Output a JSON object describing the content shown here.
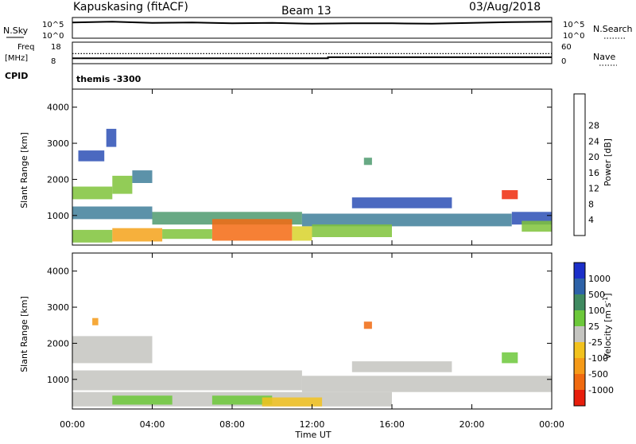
{
  "header": {
    "station": "Kapuskasing (fitACF)",
    "beam": "Beam 13",
    "date": "03/Aug/2018"
  },
  "strip_labels": {
    "nsky": "N.Sky",
    "nsky_ticks": [
      "10^5",
      "10^0"
    ],
    "freq_line1": "Freq",
    "freq_line2": "[MHz]",
    "freq_ticks": [
      "18",
      "8"
    ],
    "cpid": "CPID",
    "nsearch": "N.Search",
    "nsearch_ticks": [
      "10^5",
      "10^0"
    ],
    "nave": "Nave",
    "nave_ticks": [
      "60",
      "0"
    ],
    "cpid_value": "themis -3300"
  },
  "axes": {
    "xlabel": "Time UT",
    "x_ticks": [
      "00:00",
      "04:00",
      "08:00",
      "12:00",
      "16:00",
      "20:00",
      "00:00"
    ],
    "ylabel": "Slant Range [km]",
    "y_ticks": [
      "1000",
      "2000",
      "3000",
      "4000"
    ]
  },
  "colorbars": {
    "power": {
      "label": "Power [dB]",
      "ticks": [
        "4",
        "8",
        "12",
        "16",
        "20",
        "24",
        "28"
      ],
      "colors": [
        "#0a1cff",
        "#2c4fb5",
        "#3f7f9a",
        "#4e9a6e",
        "#7fc33a",
        "#d8d22a",
        "#f5a21a",
        "#f46a12",
        "#ee2a0c"
      ]
    },
    "velocity": {
      "label": "Velocity [m s",
      "label_sup": "-1",
      "label_end": "]",
      "ticks": [
        "1000",
        "500",
        "100",
        "25",
        "-25",
        "-100",
        "-500",
        "-1000"
      ],
      "colors": [
        "#1b2fc9",
        "#2d62a8",
        "#3f8a60",
        "#6cc83a",
        "#c4c4c0",
        "#f2c21e",
        "#f59a18",
        "#f06a10",
        "#e81e0c"
      ]
    }
  },
  "chart_data": [
    {
      "type": "line",
      "title": "N.Sky / N.Search",
      "x_range_hours": [
        0,
        24
      ],
      "ylim_log10": [
        0,
        5
      ],
      "series": [
        {
          "name": "N.Sky",
          "x": [
            0,
            2,
            4,
            6,
            8,
            10,
            12,
            14,
            16,
            18,
            20,
            22,
            24
          ],
          "y": [
            3.8,
            4.0,
            3.7,
            3.8,
            3.6,
            3.7,
            3.5,
            3.6,
            3.6,
            3.5,
            3.7,
            3.9,
            4.0
          ]
        }
      ]
    },
    {
      "type": "line",
      "title": "Freq / Nave",
      "x_range_hours": [
        0,
        24
      ],
      "series": [
        {
          "name": "Freq",
          "x": [
            0,
            12.8,
            12.8,
            24
          ],
          "y": [
            10.5,
            10.5,
            11.0,
            11.0
          ]
        },
        {
          "name": "Nave",
          "x": [
            0,
            24
          ],
          "y": [
            28,
            28
          ]
        }
      ]
    },
    {
      "type": "heatmap",
      "title": "Power",
      "xlabel": "Time UT",
      "ylabel": "Slant Range [km]",
      "x_range_hours": [
        0,
        24
      ],
      "ylim": [
        180,
        4500
      ],
      "zlabel": "Power [dB]",
      "patches": [
        {
          "t0": 0.0,
          "t1": 2.0,
          "r0": 1450,
          "r1": 1800,
          "level": 4
        },
        {
          "t0": 2.0,
          "t1": 3.0,
          "r0": 1600,
          "r1": 2100,
          "level": 4
        },
        {
          "t0": 3.0,
          "t1": 4.0,
          "r0": 1900,
          "r1": 2250,
          "level": 2
        },
        {
          "t0": 0.3,
          "t1": 1.6,
          "r0": 2500,
          "r1": 2800,
          "level": 1
        },
        {
          "t0": 1.7,
          "t1": 2.2,
          "r0": 2900,
          "r1": 3400,
          "level": 1
        },
        {
          "t0": 0.0,
          "t1": 4.0,
          "r0": 900,
          "r1": 1250,
          "level": 2
        },
        {
          "t0": 4.0,
          "t1": 11.5,
          "r0": 750,
          "r1": 1100,
          "level": 3
        },
        {
          "t0": 11.5,
          "t1": 22.0,
          "r0": 700,
          "r1": 1050,
          "level": 2
        },
        {
          "t0": 22.0,
          "t1": 24.0,
          "r0": 750,
          "r1": 1100,
          "level": 1
        },
        {
          "t0": 0.0,
          "t1": 2.0,
          "r0": 250,
          "r1": 600,
          "level": 4
        },
        {
          "t0": 2.0,
          "t1": 4.5,
          "r0": 280,
          "r1": 650,
          "level": 6
        },
        {
          "t0": 4.5,
          "t1": 7.0,
          "r0": 350,
          "r1": 620,
          "level": 4
        },
        {
          "t0": 7.0,
          "t1": 11.0,
          "r0": 300,
          "r1": 900,
          "level": 7
        },
        {
          "t0": 11.0,
          "t1": 12.0,
          "r0": 300,
          "r1": 700,
          "level": 5
        },
        {
          "t0": 12.0,
          "t1": 16.0,
          "r0": 400,
          "r1": 750,
          "level": 4
        },
        {
          "t0": 14.0,
          "t1": 19.0,
          "r0": 1200,
          "r1": 1500,
          "level": 1
        },
        {
          "t0": 21.5,
          "t1": 22.3,
          "r0": 1450,
          "r1": 1700,
          "level": 8
        },
        {
          "t0": 22.5,
          "t1": 24.0,
          "r0": 550,
          "r1": 850,
          "level": 4
        },
        {
          "t0": 14.6,
          "t1": 15.0,
          "r0": 2400,
          "r1": 2600,
          "level": 3
        }
      ]
    },
    {
      "type": "heatmap",
      "title": "Velocity",
      "xlabel": "Time UT",
      "ylabel": "Slant Range [km]",
      "x_range_hours": [
        0,
        24
      ],
      "ylim": [
        180,
        4500
      ],
      "zlabel": "Velocity [m s-1]",
      "patches": [
        {
          "t0": 0.0,
          "t1": 4.0,
          "r0": 1450,
          "r1": 2200,
          "level": 4
        },
        {
          "t0": 0.0,
          "t1": 11.5,
          "r0": 700,
          "r1": 1250,
          "level": 4
        },
        {
          "t0": 11.5,
          "t1": 24.0,
          "r0": 650,
          "r1": 1100,
          "level": 4
        },
        {
          "t0": 0.0,
          "t1": 16.0,
          "r0": 250,
          "r1": 650,
          "level": 4
        },
        {
          "t0": 2.0,
          "t1": 5.0,
          "r0": 300,
          "r1": 550,
          "level": 3
        },
        {
          "t0": 7.0,
          "t1": 10.0,
          "r0": 300,
          "r1": 550,
          "level": 3
        },
        {
          "t0": 9.5,
          "t1": 12.5,
          "r0": 250,
          "r1": 500,
          "level": 5
        },
        {
          "t0": 14.0,
          "t1": 19.0,
          "r0": 1200,
          "r1": 1500,
          "level": 4
        },
        {
          "t0": 21.5,
          "t1": 22.3,
          "r0": 1450,
          "r1": 1750,
          "level": 3
        },
        {
          "t0": 1.0,
          "t1": 1.3,
          "r0": 2500,
          "r1": 2700,
          "level": 6
        },
        {
          "t0": 14.6,
          "t1": 15.0,
          "r0": 2400,
          "r1": 2600,
          "level": 7
        }
      ]
    }
  ]
}
